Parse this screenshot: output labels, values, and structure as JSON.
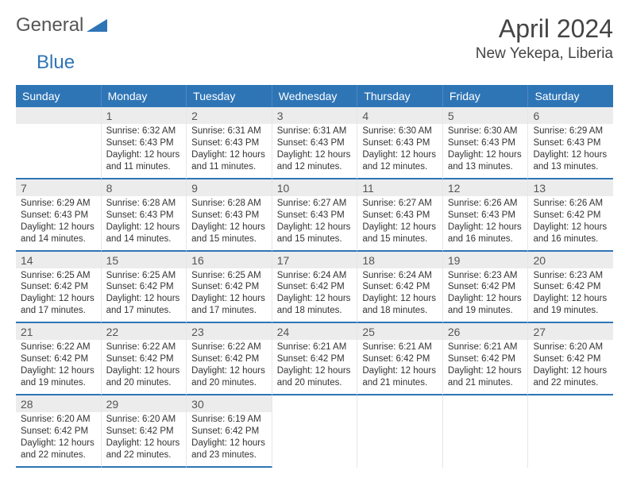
{
  "logo": {
    "textGeneral": "General",
    "textBlue": "Blue"
  },
  "header": {
    "monthTitle": "April 2024",
    "location": "New Yekepa, Liberia"
  },
  "colors": {
    "header_bg": "#2e75b6",
    "header_text": "#ffffff",
    "daynum_bg": "#ececec",
    "border": "#e6e6e6",
    "week_divider": "#2e75b6",
    "body_text": "#333333",
    "logo_blue": "#2e75b6"
  },
  "dayNames": [
    "Sunday",
    "Monday",
    "Tuesday",
    "Wednesday",
    "Thursday",
    "Friday",
    "Saturday"
  ],
  "calendar": {
    "firstDayOffset": 1,
    "numDays": 30,
    "days": [
      {
        "n": 1,
        "sunrise": "6:32 AM",
        "sunset": "6:43 PM",
        "daylight": "12 hours and 11 minutes."
      },
      {
        "n": 2,
        "sunrise": "6:31 AM",
        "sunset": "6:43 PM",
        "daylight": "12 hours and 11 minutes."
      },
      {
        "n": 3,
        "sunrise": "6:31 AM",
        "sunset": "6:43 PM",
        "daylight": "12 hours and 12 minutes."
      },
      {
        "n": 4,
        "sunrise": "6:30 AM",
        "sunset": "6:43 PM",
        "daylight": "12 hours and 12 minutes."
      },
      {
        "n": 5,
        "sunrise": "6:30 AM",
        "sunset": "6:43 PM",
        "daylight": "12 hours and 13 minutes."
      },
      {
        "n": 6,
        "sunrise": "6:29 AM",
        "sunset": "6:43 PM",
        "daylight": "12 hours and 13 minutes."
      },
      {
        "n": 7,
        "sunrise": "6:29 AM",
        "sunset": "6:43 PM",
        "daylight": "12 hours and 14 minutes."
      },
      {
        "n": 8,
        "sunrise": "6:28 AM",
        "sunset": "6:43 PM",
        "daylight": "12 hours and 14 minutes."
      },
      {
        "n": 9,
        "sunrise": "6:28 AM",
        "sunset": "6:43 PM",
        "daylight": "12 hours and 15 minutes."
      },
      {
        "n": 10,
        "sunrise": "6:27 AM",
        "sunset": "6:43 PM",
        "daylight": "12 hours and 15 minutes."
      },
      {
        "n": 11,
        "sunrise": "6:27 AM",
        "sunset": "6:43 PM",
        "daylight": "12 hours and 15 minutes."
      },
      {
        "n": 12,
        "sunrise": "6:26 AM",
        "sunset": "6:43 PM",
        "daylight": "12 hours and 16 minutes."
      },
      {
        "n": 13,
        "sunrise": "6:26 AM",
        "sunset": "6:42 PM",
        "daylight": "12 hours and 16 minutes."
      },
      {
        "n": 14,
        "sunrise": "6:25 AM",
        "sunset": "6:42 PM",
        "daylight": "12 hours and 17 minutes."
      },
      {
        "n": 15,
        "sunrise": "6:25 AM",
        "sunset": "6:42 PM",
        "daylight": "12 hours and 17 minutes."
      },
      {
        "n": 16,
        "sunrise": "6:25 AM",
        "sunset": "6:42 PM",
        "daylight": "12 hours and 17 minutes."
      },
      {
        "n": 17,
        "sunrise": "6:24 AM",
        "sunset": "6:42 PM",
        "daylight": "12 hours and 18 minutes."
      },
      {
        "n": 18,
        "sunrise": "6:24 AM",
        "sunset": "6:42 PM",
        "daylight": "12 hours and 18 minutes."
      },
      {
        "n": 19,
        "sunrise": "6:23 AM",
        "sunset": "6:42 PM",
        "daylight": "12 hours and 19 minutes."
      },
      {
        "n": 20,
        "sunrise": "6:23 AM",
        "sunset": "6:42 PM",
        "daylight": "12 hours and 19 minutes."
      },
      {
        "n": 21,
        "sunrise": "6:22 AM",
        "sunset": "6:42 PM",
        "daylight": "12 hours and 19 minutes."
      },
      {
        "n": 22,
        "sunrise": "6:22 AM",
        "sunset": "6:42 PM",
        "daylight": "12 hours and 20 minutes."
      },
      {
        "n": 23,
        "sunrise": "6:22 AM",
        "sunset": "6:42 PM",
        "daylight": "12 hours and 20 minutes."
      },
      {
        "n": 24,
        "sunrise": "6:21 AM",
        "sunset": "6:42 PM",
        "daylight": "12 hours and 20 minutes."
      },
      {
        "n": 25,
        "sunrise": "6:21 AM",
        "sunset": "6:42 PM",
        "daylight": "12 hours and 21 minutes."
      },
      {
        "n": 26,
        "sunrise": "6:21 AM",
        "sunset": "6:42 PM",
        "daylight": "12 hours and 21 minutes."
      },
      {
        "n": 27,
        "sunrise": "6:20 AM",
        "sunset": "6:42 PM",
        "daylight": "12 hours and 22 minutes."
      },
      {
        "n": 28,
        "sunrise": "6:20 AM",
        "sunset": "6:42 PM",
        "daylight": "12 hours and 22 minutes."
      },
      {
        "n": 29,
        "sunrise": "6:20 AM",
        "sunset": "6:42 PM",
        "daylight": "12 hours and 22 minutes."
      },
      {
        "n": 30,
        "sunrise": "6:19 AM",
        "sunset": "6:42 PM",
        "daylight": "12 hours and 23 minutes."
      }
    ]
  },
  "labels": {
    "sunrisePrefix": "Sunrise: ",
    "sunsetPrefix": "Sunset: ",
    "daylightPrefix": "Daylight: "
  }
}
